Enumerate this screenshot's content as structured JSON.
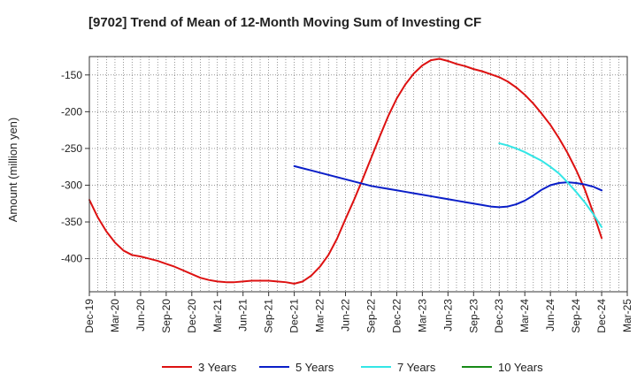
{
  "chart_data": {
    "type": "line",
    "title": "[9702]  Trend of Mean of 12-Month Moving Sum of Investing CF",
    "xlabel": "",
    "ylabel": "Amount (million yen)",
    "ylim": [
      -445,
      -125
    ],
    "yticks": [
      -150,
      -200,
      -250,
      -300,
      -350,
      -400
    ],
    "x_tick_labels": [
      "Dec-19",
      "Mar-20",
      "Jun-20",
      "Sep-20",
      "Dec-20",
      "Mar-21",
      "Jun-21",
      "Sep-21",
      "Dec-21",
      "Mar-22",
      "Jun-22",
      "Sep-22",
      "Dec-22",
      "Mar-23",
      "Jun-23",
      "Sep-23",
      "Dec-23",
      "Mar-24",
      "Jun-24",
      "Sep-24",
      "Dec-24",
      "Mar-25"
    ],
    "x_range_months": [
      0,
      63
    ],
    "grid": true,
    "legend_position": "bottom",
    "colors": {
      "3 Years": "#dd1111",
      "5 Years": "#0a1ec8",
      "7 Years": "#33e6e6",
      "10 Years": "#168a16"
    },
    "series": [
      {
        "name": "3 Years",
        "x": [
          0,
          1,
          2,
          3,
          4,
          5,
          6,
          7,
          8,
          9,
          10,
          11,
          12,
          13,
          14,
          15,
          16,
          17,
          18,
          19,
          20,
          21,
          22,
          23,
          24,
          25,
          26,
          27,
          28,
          29,
          30,
          31,
          32,
          33,
          34,
          35,
          36,
          37,
          38,
          39,
          40,
          41,
          42,
          43,
          44,
          45,
          46,
          47,
          48,
          49,
          50,
          51,
          52,
          53,
          54,
          55,
          56,
          57,
          58,
          59,
          60
        ],
        "values": [
          -320,
          -344,
          -363,
          -378,
          -389,
          -395,
          -397,
          -400,
          -403,
          -407,
          -411,
          -416,
          -421,
          -426,
          -429,
          -431,
          -432,
          -432,
          -431,
          -430,
          -430,
          -430,
          -431,
          -432,
          -434,
          -431,
          -423,
          -411,
          -395,
          -373,
          -346,
          -320,
          -292,
          -263,
          -234,
          -206,
          -182,
          -163,
          -148,
          -137,
          -130,
          -128,
          -131,
          -135,
          -138,
          -142,
          -145,
          -149,
          -153,
          -159,
          -167,
          -177,
          -189,
          -203,
          -218,
          -236,
          -256,
          -279,
          -305,
          -337,
          -372
        ]
      },
      {
        "name": "5 Years",
        "x": [
          24,
          25,
          26,
          27,
          28,
          29,
          30,
          31,
          32,
          33,
          34,
          35,
          36,
          37,
          38,
          39,
          40,
          41,
          42,
          43,
          44,
          45,
          46,
          47,
          48,
          49,
          50,
          51,
          52,
          53,
          54,
          55,
          56,
          57,
          58,
          59,
          60
        ],
        "values": [
          -274,
          -277,
          -280,
          -283,
          -286,
          -289,
          -292,
          -295,
          -298,
          -301,
          -303,
          -305,
          -307,
          -309,
          -311,
          -313,
          -315,
          -317,
          -319,
          -321,
          -323,
          -325,
          -327,
          -329,
          -330,
          -329,
          -326,
          -321,
          -314,
          -306,
          -300,
          -297,
          -296,
          -297,
          -299,
          -302,
          -307
        ]
      },
      {
        "name": "7 Years",
        "x": [
          48,
          49,
          50,
          51,
          52,
          53,
          54,
          55,
          56,
          57,
          58,
          59,
          60
        ],
        "values": [
          -243,
          -246,
          -250,
          -255,
          -261,
          -267,
          -275,
          -284,
          -296,
          -309,
          -323,
          -339,
          -357
        ]
      },
      {
        "name": "10 Years",
        "x": [],
        "values": []
      }
    ]
  }
}
